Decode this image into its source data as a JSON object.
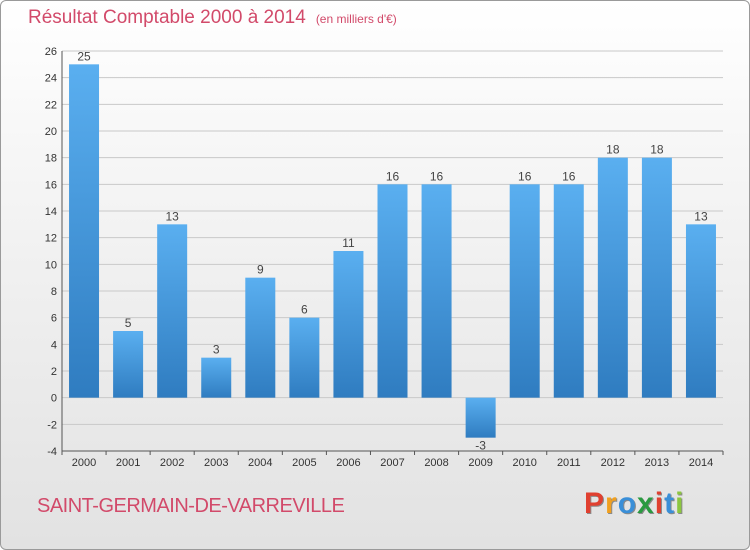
{
  "colors": {
    "title": "#d24a6a",
    "bar_light": "#5aaff0",
    "bar_dark": "#2f7cc0",
    "grid": "#c9c9c9",
    "logo_letters": [
      "#e04030",
      "#f0a020",
      "#3a8fd8",
      "#2a9a40",
      "#e04030",
      "#3a8fd8",
      "#8cc63f"
    ]
  },
  "header": {
    "title": "Résultat Comptable 2000 à 2014",
    "subtitle": "(en milliers d'€)"
  },
  "footer": {
    "commune": "SAINT-GERMAIN-DE-VARREVILLE",
    "logo_text": "Proxiti",
    "logo_icon": "proxiti-logo"
  },
  "chart_data": {
    "type": "bar",
    "title": "Résultat Comptable 2000 à 2014",
    "subtitle": "(en milliers d'€)",
    "xlabel": "",
    "ylabel": "",
    "ylim": [
      -4,
      26
    ],
    "yticks": [
      -4,
      -2,
      0,
      2,
      4,
      6,
      8,
      10,
      12,
      14,
      16,
      18,
      20,
      22,
      24,
      26
    ],
    "grid": true,
    "categories": [
      "2000",
      "2001",
      "2002",
      "2003",
      "2004",
      "2005",
      "2006",
      "2007",
      "2008",
      "2009",
      "2010",
      "2011",
      "2012",
      "2013",
      "2014"
    ],
    "values": [
      25,
      5,
      13,
      3,
      9,
      6,
      11,
      16,
      16,
      -3,
      16,
      16,
      18,
      18,
      13
    ]
  }
}
